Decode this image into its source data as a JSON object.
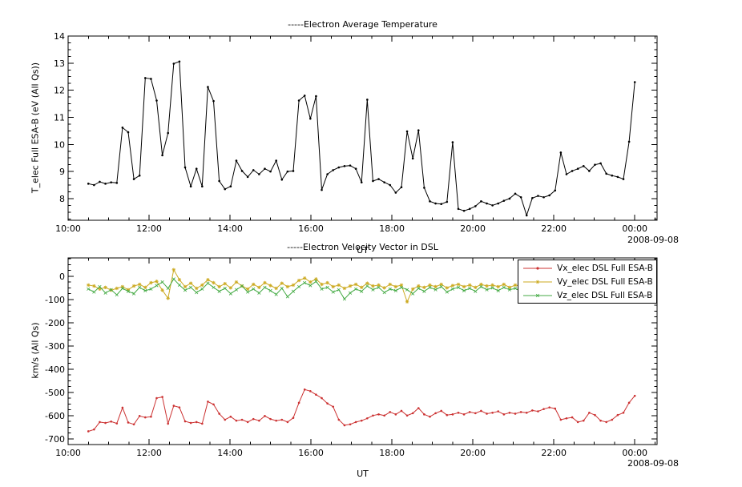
{
  "window": {
    "background": "#ffffff"
  },
  "chart_data": [
    {
      "type": "line",
      "title": "-----Electron Average Temperature",
      "xlabel": "UT",
      "ylabel": "T_elec Full ESA-B (eV (All Qs))",
      "date_label": "2008-09-08",
      "xlim": [
        10,
        24.55
      ],
      "ylim": [
        7.2,
        14
      ],
      "xtick_values": [
        10,
        12,
        14,
        16,
        18,
        20,
        22,
        24
      ],
      "xtick_labels": [
        "10:00",
        "12:00",
        "14:00",
        "16:00",
        "18:00",
        "20:00",
        "22:00",
        "00:00"
      ],
      "ytick_values": [
        8,
        9,
        10,
        11,
        12,
        13,
        14
      ],
      "ytick_labels": [
        "8",
        "9",
        "10",
        "11",
        "12",
        "13",
        "14"
      ],
      "x_minor": 0.5,
      "y_minor": 0.25,
      "grid": false,
      "series": [
        {
          "name": "T_elec Full ESA-B",
          "color": "#000000",
          "marker": "dot",
          "x_start": 10.5,
          "x_end": 24.0,
          "values": [
            8.55,
            8.5,
            8.62,
            8.55,
            8.6,
            8.58,
            10.62,
            10.45,
            8.72,
            8.85,
            12.45,
            12.42,
            11.62,
            9.6,
            10.42,
            12.98,
            13.06,
            9.15,
            8.45,
            9.1,
            8.45,
            12.12,
            11.6,
            8.65,
            8.35,
            8.45,
            9.4,
            9.02,
            8.8,
            9.05,
            8.9,
            9.1,
            9.0,
            9.4,
            8.7,
            9.0,
            9.02,
            11.62,
            11.8,
            10.95,
            11.78,
            8.32,
            8.9,
            9.05,
            9.15,
            9.2,
            9.22,
            9.1,
            8.6,
            11.65,
            8.65,
            8.72,
            8.6,
            8.5,
            8.22,
            8.42,
            10.48,
            9.48,
            10.52,
            8.4,
            7.9,
            7.82,
            7.8,
            7.88,
            10.08,
            7.62,
            7.55,
            7.62,
            7.72,
            7.9,
            7.82,
            7.75,
            7.82,
            7.92,
            8.0,
            8.18,
            8.05,
            7.38,
            8.02,
            8.1,
            8.05,
            8.12,
            8.3,
            9.7,
            8.9,
            9.02,
            9.1,
            9.2,
            9.02,
            9.25,
            9.3,
            8.92,
            8.85,
            8.8,
            8.72,
            10.1,
            12.3
          ]
        }
      ]
    },
    {
      "type": "line",
      "title": "-----Electron Velocity Vector in DSL",
      "xlabel": "UT",
      "ylabel": "km/s (All Qs)",
      "date_label": "2008-09-08",
      "xlim": [
        10,
        24.55
      ],
      "ylim": [
        -725,
        79
      ],
      "xtick_values": [
        10,
        12,
        14,
        16,
        18,
        20,
        22,
        24
      ],
      "xtick_labels": [
        "10:00",
        "12:00",
        "14:00",
        "16:00",
        "18:00",
        "20:00",
        "22:00",
        "00:00"
      ],
      "ytick_values": [
        0,
        -100,
        -200,
        -300,
        -400,
        -500,
        -600,
        -700
      ],
      "ytick_labels": [
        "0",
        "-100",
        "-200",
        "-300",
        "-400",
        "-500",
        "-600",
        "-700"
      ],
      "x_minor": 0.5,
      "y_minor": 25,
      "grid": false,
      "legend_position": "top-right",
      "series": [
        {
          "name": "Vx_elec DSL Full ESA-B",
          "color": "#cc3333",
          "marker": "dot",
          "x_start": 10.5,
          "x_end": 24.0,
          "values": [
            -668,
            -660,
            -628,
            -632,
            -626,
            -634,
            -566,
            -630,
            -638,
            -602,
            -608,
            -605,
            -525,
            -520,
            -635,
            -558,
            -565,
            -625,
            -632,
            -628,
            -635,
            -540,
            -552,
            -592,
            -618,
            -605,
            -622,
            -618,
            -628,
            -615,
            -622,
            -602,
            -615,
            -622,
            -618,
            -628,
            -610,
            -545,
            -488,
            -495,
            -510,
            -525,
            -548,
            -562,
            -618,
            -642,
            -638,
            -628,
            -622,
            -612,
            -600,
            -595,
            -600,
            -585,
            -595,
            -580,
            -600,
            -590,
            -568,
            -595,
            -605,
            -590,
            -580,
            -598,
            -595,
            -588,
            -595,
            -585,
            -590,
            -580,
            -592,
            -588,
            -582,
            -595,
            -588,
            -592,
            -585,
            -588,
            -578,
            -582,
            -572,
            -565,
            -570,
            -618,
            -612,
            -608,
            -628,
            -622,
            -588,
            -598,
            -622,
            -628,
            -618,
            -598,
            -588,
            -545,
            -515
          ]
        },
        {
          "name": "Vy_elec DSL Full ESA-B",
          "color": "#ccaa22",
          "marker": "star",
          "x_start": 10.5,
          "x_end": 24.0,
          "values": [
            -38,
            -42,
            -55,
            -48,
            -60,
            -52,
            -45,
            -58,
            -42,
            -35,
            -48,
            -28,
            -22,
            -60,
            -95,
            28,
            -15,
            -45,
            -30,
            -52,
            -38,
            -15,
            -28,
            -45,
            -32,
            -50,
            -25,
            -42,
            -55,
            -35,
            -48,
            -28,
            -40,
            -52,
            -30,
            -45,
            -38,
            -18,
            -8,
            -25,
            -12,
            -35,
            -28,
            -45,
            -38,
            -52,
            -42,
            -35,
            -48,
            -30,
            -42,
            -38,
            -50,
            -35,
            -45,
            -38,
            -110,
            -55,
            -42,
            -48,
            -38,
            -45,
            -35,
            -50,
            -40,
            -35,
            -45,
            -38,
            -48,
            -35,
            -42,
            -38,
            -45,
            -35,
            -48,
            -38,
            -42,
            -35,
            -45,
            -38,
            -42,
            -32,
            -38,
            -45,
            -35,
            -42,
            -30,
            -38,
            -45,
            -32,
            -40,
            -35,
            -42,
            -30,
            -35,
            -28,
            -25
          ]
        },
        {
          "name": "Vz_elec DSL Full ESA-B",
          "color": "#44aa44",
          "marker": "cross",
          "x_start": 10.5,
          "x_end": 24.0,
          "values": [
            -55,
            -68,
            -45,
            -72,
            -58,
            -80,
            -52,
            -65,
            -75,
            -48,
            -62,
            -55,
            -40,
            -25,
            -52,
            -12,
            -38,
            -60,
            -48,
            -70,
            -55,
            -30,
            -48,
            -65,
            -52,
            -75,
            -58,
            -42,
            -68,
            -55,
            -72,
            -48,
            -62,
            -78,
            -52,
            -88,
            -65,
            -45,
            -28,
            -40,
            -22,
            -55,
            -48,
            -68,
            -58,
            -98,
            -72,
            -55,
            -65,
            -42,
            -58,
            -48,
            -70,
            -55,
            -62,
            -48,
            -58,
            -75,
            -52,
            -65,
            -48,
            -58,
            -45,
            -68,
            -55,
            -48,
            -62,
            -52,
            -65,
            -45,
            -58,
            -50,
            -62,
            -48,
            -58,
            -52,
            -65,
            -48,
            -58,
            -50,
            -60,
            -45,
            -55,
            -62,
            -48,
            -58,
            -45,
            -55,
            -62,
            -42,
            -52,
            -48,
            -58,
            -45,
            -52,
            -48,
            -45
          ]
        }
      ]
    }
  ]
}
